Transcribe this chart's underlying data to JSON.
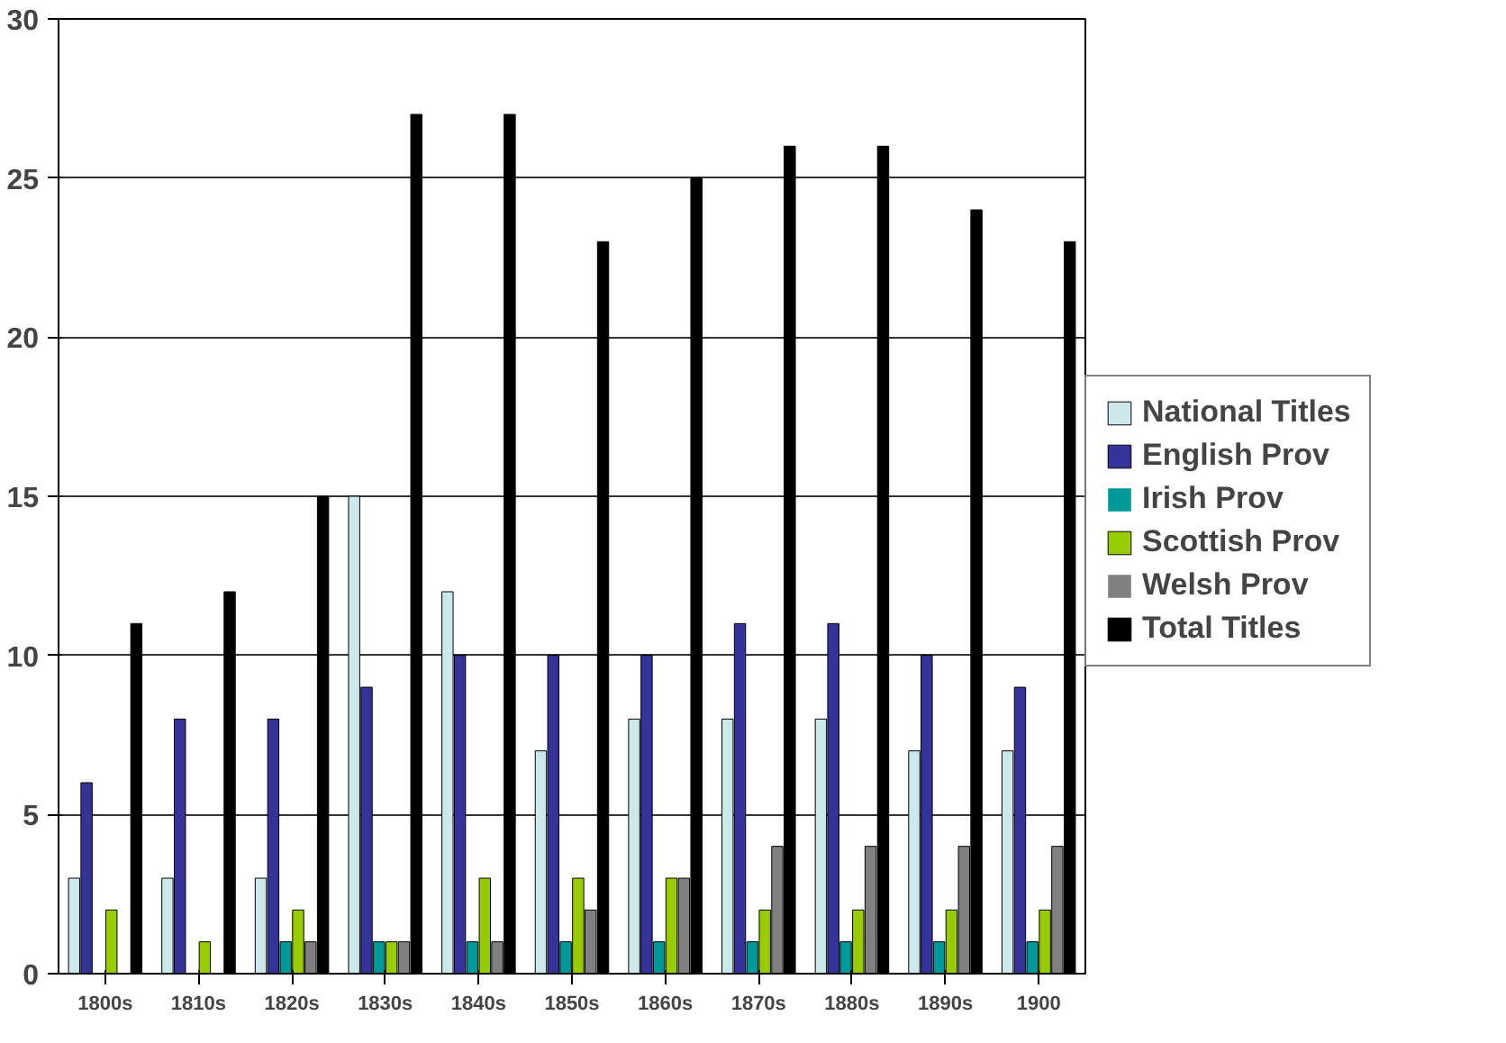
{
  "chart_data": {
    "type": "bar",
    "categories": [
      "1800s",
      "1810s",
      "1820s",
      "1830s",
      "1840s",
      "1850s",
      "1860s",
      "1870s",
      "1880s",
      "1890s",
      "1900"
    ],
    "series": [
      {
        "name": "National Titles",
        "color": "#cce8ea",
        "values": [
          3,
          3,
          3,
          15,
          12,
          7,
          8,
          8,
          8,
          7,
          7
        ]
      },
      {
        "name": "English Prov",
        "color": "#333399",
        "values": [
          6,
          8,
          8,
          9,
          10,
          10,
          10,
          11,
          11,
          10,
          9
        ]
      },
      {
        "name": "Irish Prov",
        "color": "#009999",
        "values": [
          0,
          0,
          1,
          1,
          1,
          1,
          1,
          1,
          1,
          1,
          1
        ]
      },
      {
        "name": "Scottish Prov",
        "color": "#99cc00",
        "values": [
          2,
          1,
          2,
          1,
          3,
          3,
          3,
          2,
          2,
          2,
          2
        ]
      },
      {
        "name": "Welsh Prov",
        "color": "#808080",
        "values": [
          0,
          0,
          1,
          1,
          1,
          2,
          3,
          4,
          4,
          4,
          4
        ]
      },
      {
        "name": "Total Titles",
        "color": "#000000",
        "values": [
          11,
          12,
          15,
          27,
          27,
          23,
          25,
          26,
          26,
          24,
          23
        ]
      }
    ],
    "ylim": [
      0,
      30
    ],
    "yticks": [
      0,
      5,
      10,
      15,
      20,
      25,
      30
    ],
    "grid": "y",
    "legend": "right"
  }
}
